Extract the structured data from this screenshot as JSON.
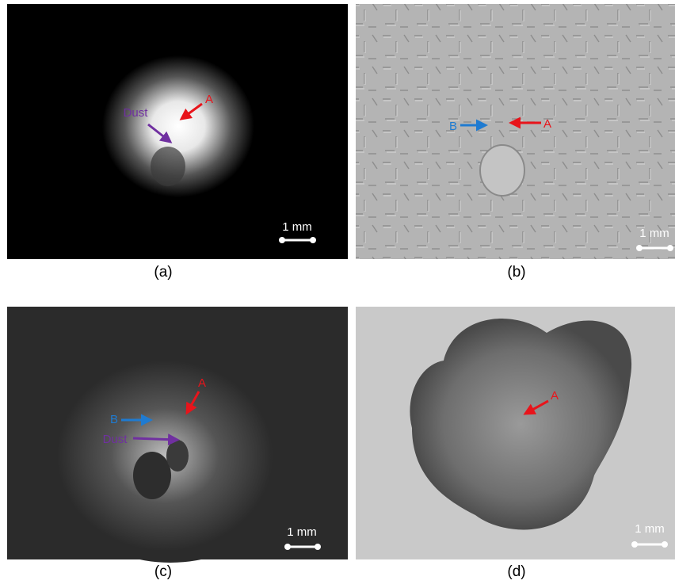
{
  "panels": [
    {
      "caption": "(a)",
      "scale_bar": "1 mm",
      "annotations": [
        {
          "label": "A"
        },
        {
          "label": "Dust"
        }
      ]
    },
    {
      "caption": "(b)",
      "scale_bar": "1 mm",
      "annotations": [
        {
          "label": "B"
        },
        {
          "label": "A"
        }
      ]
    },
    {
      "caption": "(c)",
      "scale_bar": "1 mm",
      "annotations": [
        {
          "label": "A"
        },
        {
          "label": "B"
        },
        {
          "label": "Dust"
        }
      ]
    },
    {
      "caption": "(d)",
      "scale_bar": "1 mm",
      "annotations": [
        {
          "label": "A"
        }
      ]
    }
  ]
}
